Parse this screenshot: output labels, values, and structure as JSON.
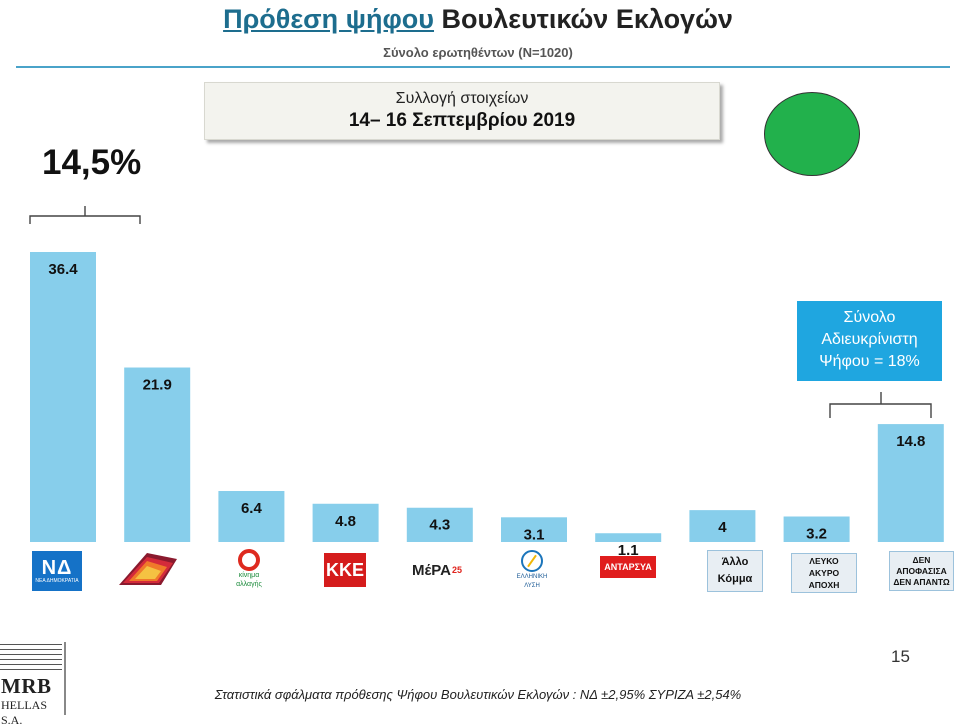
{
  "header": {
    "title_highlight": "Πρόθεση ψήφου",
    "title_rest": "Βουλευτικών Εκλογών",
    "subtitle": "Σύνολο ερωτηθέντων (Ν=1020)"
  },
  "collection": {
    "label": "Συλλογή στοιχείων",
    "dates": "14– 16 Σεπτεμβρίου 2019"
  },
  "lead_annotation": "14,5%",
  "undecided_note": {
    "line1": "Σύνολο",
    "line2": "Αδιευκρίνιστη",
    "line3": "Ψήφου = 18%"
  },
  "colors": {
    "bar": "#87ceeb",
    "accent": "#1d6d8e",
    "note_bg": "#1fa6e0",
    "status_dot": "#22b14c"
  },
  "chart_data": {
    "type": "bar",
    "categories": [
      "ΝΕΑ ΔΗΜΟΚΡΑΤΙΑ",
      "ΣΥΡΙΖΑ",
      "κίνημα αλλαγής",
      "ΚΚΕ",
      "ΜέΡΑ25",
      "ΕΛΛΗΝΙΚΗ ΛΥΣΗ",
      "ΑΝΤΑΡΣΥΑ",
      "Άλλο Κόμμα",
      "ΛΕΥΚΟ ΑΚΥΡΟ ΑΠΟΧΗ",
      "ΔΕΝ ΑΠΟΦΑΣΙΣΑ ΔΕΝ ΑΠΑΝΤΩ"
    ],
    "values": [
      36.4,
      21.9,
      6.4,
      4.8,
      4.3,
      3.1,
      1.1,
      4,
      3.2,
      14.8
    ],
    "value_labels": [
      "36.4",
      "21.9",
      "6.4",
      "4.8",
      "4.3",
      "3.1",
      "1.1",
      "4",
      "3.2",
      "14.8"
    ],
    "ylim": [
      0,
      36.4
    ],
    "grid": false,
    "legend": "none"
  },
  "logos": {
    "nd_mark": "ΝΔ",
    "nd_text": "ΝΕΑ ΔΗΜΟΚΡΑΤΙΑ",
    "kinal_line1": "κίνημα",
    "kinal_line2": "αλλαγής",
    "kke": "ΚΚΕ",
    "mera": "ΜέΡΑ",
    "mera_num": "25",
    "elliniki_line1": "ΕΛΛΗΝΙΚΗ",
    "elliniki_line2": "ΛΥΣΗ",
    "antarsya": "ΑΝΤΑΡΣΥΑ",
    "allo_line1": "Άλλο",
    "allo_line2": "Κόμμα",
    "lefko_line1": "ΛΕΥΚΟ",
    "lefko_line2": "ΑΚΥΡΟ",
    "lefko_line3": "ΑΠΟΧΗ",
    "den_line1": "ΔΕΝ",
    "den_line2": "ΑΠΟΦΑΣΙΣΑ",
    "den_line3": "ΔΕΝ ΑΠΑΝΤΩ"
  },
  "page_number": "15",
  "footer": "Στατιστικά σφάλματα πρόθεσης Ψήφου Βουλευτικών Εκλογών : ΝΔ ±2,95% ΣΥΡΙΖΑ ±2,54%",
  "brand": {
    "name": "MRB",
    "sub": "HELLAS S.A."
  }
}
